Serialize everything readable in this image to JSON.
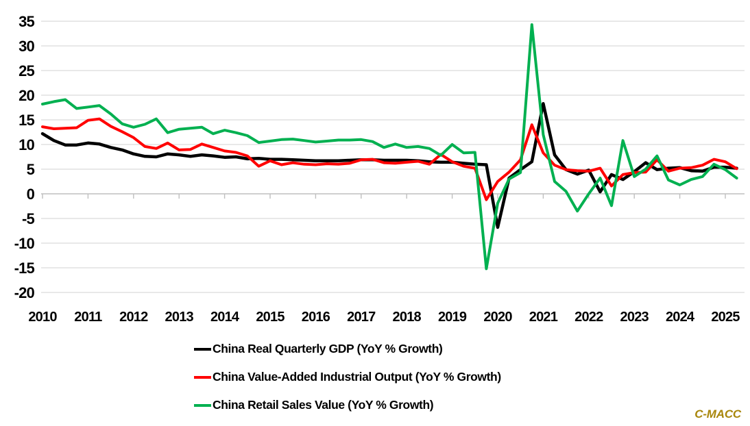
{
  "watermark": "C-MACC",
  "colors": {
    "gdp_line": "#000000",
    "industrial_line": "#FF0000",
    "retail_line": "#00B050",
    "gridline": "#D9D9D9",
    "axis": "#BFBFBF",
    "watermark_gold": "#A8860B",
    "label_text": "#000000",
    "background": "#FFFFFF"
  },
  "chart_data": {
    "type": "line",
    "title": "",
    "xlabel": "",
    "ylabel": "",
    "x_start": 2010,
    "x_step_years": 0.25,
    "x_ticks": [
      2010,
      2011,
      2012,
      2013,
      2014,
      2015,
      2016,
      2017,
      2018,
      2019,
      2020,
      2021,
      2022,
      2023,
      2024,
      2025
    ],
    "y_ticks": [
      35,
      30,
      25,
      20,
      15,
      10,
      5,
      0,
      -5,
      -10,
      -15,
      -20
    ],
    "ylim": [
      -20,
      35
    ],
    "grid": true,
    "legend_position": "bottom-left-stacked",
    "series": [
      {
        "name": "China Real Quarterly GDP (YoY % Growth)",
        "color": "#000000",
        "stroke_width": 4.5,
        "values": [
          12.2,
          10.8,
          9.9,
          9.9,
          10.3,
          10.1,
          9.4,
          8.9,
          8.1,
          7.6,
          7.5,
          8.1,
          7.9,
          7.6,
          7.9,
          7.7,
          7.4,
          7.5,
          7.1,
          7.2,
          7.0,
          7.0,
          6.9,
          6.8,
          6.7,
          6.7,
          6.7,
          6.8,
          6.9,
          6.9,
          6.8,
          6.8,
          6.8,
          6.7,
          6.5,
          6.4,
          6.4,
          6.2,
          6.0,
          5.9,
          -6.8,
          3.2,
          4.9,
          6.5,
          18.3,
          7.9,
          4.9,
          4.0,
          4.8,
          0.4,
          3.9,
          2.9,
          4.5,
          6.3,
          4.9,
          5.2,
          5.3,
          4.7,
          4.6,
          5.4,
          5.4,
          5.2
        ]
      },
      {
        "name": "China Value-Added Industrial Output (YoY % Growth)",
        "color": "#FF0000",
        "stroke_width": 4,
        "values": [
          13.6,
          13.2,
          13.3,
          13.4,
          14.9,
          15.2,
          13.7,
          12.6,
          11.4,
          9.6,
          9.2,
          10.3,
          8.9,
          9.0,
          10.1,
          9.4,
          8.7,
          8.4,
          7.7,
          5.6,
          6.7,
          5.9,
          6.3,
          6.0,
          5.9,
          6.1,
          6.0,
          6.2,
          6.9,
          7.0,
          6.3,
          6.2,
          6.4,
          6.6,
          6.0,
          8.0,
          6.5,
          5.6,
          5.2,
          -1.2,
          2.5,
          4.4,
          6.9,
          14.0,
          8.3,
          5.8,
          4.9,
          4.7,
          4.6,
          5.2,
          1.6,
          3.9,
          4.3,
          4.4,
          6.9,
          4.6,
          5.2,
          5.3,
          5.8,
          7.0,
          6.5,
          5.1
        ]
      },
      {
        "name": "China Retail Sales Value (YoY % Growth)",
        "color": "#00B050",
        "stroke_width": 4,
        "values": [
          18.2,
          18.7,
          19.1,
          17.3,
          17.6,
          17.9,
          16.2,
          14.2,
          13.5,
          14.1,
          15.2,
          12.4,
          13.1,
          13.3,
          13.5,
          12.2,
          12.9,
          12.4,
          11.8,
          10.4,
          10.7,
          11.0,
          11.1,
          10.8,
          10.5,
          10.7,
          10.9,
          10.9,
          11.0,
          10.6,
          9.4,
          10.1,
          9.4,
          9.6,
          9.2,
          7.8,
          10.0,
          8.3,
          8.4,
          -15.2,
          -1.9,
          3.0,
          4.3,
          34.3,
          12.0,
          2.5,
          0.5,
          -3.5,
          0.0,
          3.2,
          -2.4,
          10.8,
          3.5,
          5.0,
          7.7,
          2.8,
          1.8,
          2.9,
          3.5,
          6.0,
          4.9,
          3.2
        ]
      }
    ]
  },
  "legend": {
    "items": [
      {
        "label": "China Real Quarterly GDP (YoY % Growth)"
      },
      {
        "label": "China Value-Added Industrial Output (YoY % Growth)"
      },
      {
        "label": "China Retail Sales Value (YoY % Growth)"
      }
    ]
  }
}
